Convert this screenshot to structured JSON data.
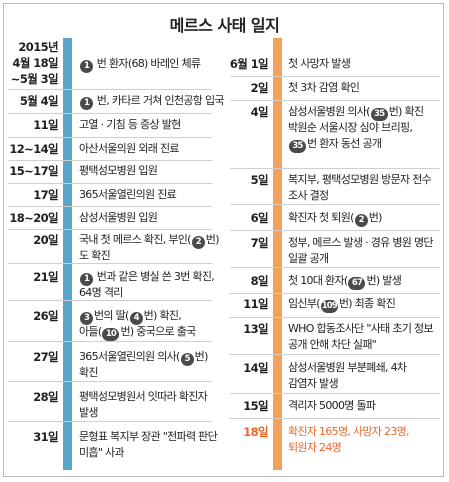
{
  "title": "메르스 사태 일지",
  "colors": {
    "left_bar": "#5aa6c9",
    "right_bar": "#f0a15a",
    "highlight": "#e8682a"
  },
  "left": [
    {
      "date": [
        "2015년",
        "4월 18일",
        "~5월 3일"
      ],
      "line1": [
        {
          "n": "1"
        },
        {
          "t": " 번 환자(68) 바레인 체류"
        }
      ]
    },
    {
      "date": [
        "5월 4일"
      ],
      "line1": [
        {
          "n": "1"
        },
        {
          "t": " 번, 카타르 거쳐 인천공항 입국"
        }
      ]
    },
    {
      "date": [
        "11일"
      ],
      "line1": [
        {
          "t": "고열 · 기침 등 증상 발현"
        }
      ]
    },
    {
      "date": [
        "12~14일"
      ],
      "line1": [
        {
          "t": "아산서울의원 외래 진료"
        }
      ]
    },
    {
      "date": [
        "15~17일"
      ],
      "line1": [
        {
          "t": "평택성모병원 입원"
        }
      ]
    },
    {
      "date": [
        "17일"
      ],
      "line1": [
        {
          "t": "365서울열린의원 진료"
        }
      ]
    },
    {
      "date": [
        "18~20일"
      ],
      "line1": [
        {
          "t": "삼성서울병원 입원"
        }
      ]
    },
    {
      "date": [
        "20일"
      ],
      "line1": [
        {
          "t": "국내 첫 메르스 확진, 부인("
        },
        {
          "n": "2"
        },
        {
          "t": "번)"
        }
      ],
      "line2": [
        {
          "t": "도 확진"
        }
      ]
    },
    {
      "date": [
        "21일"
      ],
      "line1": [
        {
          "n": "1"
        },
        {
          "t": " 번과 같은 병실 쓴 3번 확진,"
        }
      ],
      "line2": [
        {
          "t": "64명 격리"
        }
      ]
    },
    {
      "date": [
        "26일"
      ],
      "line1": [
        {
          "n": "3"
        },
        {
          "t": "번의 딸("
        },
        {
          "n": "4"
        },
        {
          "t": "번) 확진,"
        }
      ],
      "line2": [
        {
          "t": "아들("
        },
        {
          "n": "10"
        },
        {
          "t": "번) 중국으로 출국"
        }
      ]
    },
    {
      "date": [
        "27일"
      ],
      "line1": [
        {
          "t": "365서울열린의원 의사("
        },
        {
          "n": "5"
        },
        {
          "t": "번)"
        }
      ],
      "line2": [
        {
          "t": "확진"
        }
      ]
    },
    {
      "date": [
        "28일"
      ],
      "line1": [
        {
          "t": "평택성모병원서 잇따라 확진자"
        }
      ],
      "line2": [
        {
          "t": "발생"
        }
      ]
    },
    {
      "date": [
        "31일"
      ],
      "line1": [
        {
          "t": "문형표 복지부 장관 \"전파력 판단"
        }
      ],
      "line2": [
        {
          "t": "미흡\" 사과"
        }
      ]
    }
  ],
  "right": [
    {
      "date": [
        "6월 1일"
      ],
      "line1": [
        {
          "t": "첫 사망자 발생"
        }
      ]
    },
    {
      "date": [
        "2일"
      ],
      "line1": [
        {
          "t": "첫 3차 감염 확인"
        }
      ]
    },
    {
      "date": [
        "4일"
      ],
      "line1": [
        {
          "t": "삼성서울병원 의사("
        },
        {
          "n": "35"
        },
        {
          "t": "번) 확진"
        }
      ],
      "line2": [
        {
          "t": "박원순 서울시장 심야 브리핑,"
        }
      ],
      "line3": [
        {
          "n": "35"
        },
        {
          "t": "번 환자 동선 공개"
        }
      ]
    },
    {
      "date": [
        "5일"
      ],
      "line1": [
        {
          "t": "복지부, 평택성모병원 방문자 전수"
        }
      ],
      "line2": [
        {
          "t": "조사 결정"
        }
      ]
    },
    {
      "date": [
        "6일"
      ],
      "line1": [
        {
          "t": "확진자 첫 퇴원("
        },
        {
          "n": "2"
        },
        {
          "t": "번)"
        }
      ]
    },
    {
      "date": [
        "7일"
      ],
      "line1": [
        {
          "t": "정부, 메르스 발생 · 경유 병원 명단"
        }
      ],
      "line2": [
        {
          "t": "일괄 공개"
        }
      ]
    },
    {
      "date": [
        "8일"
      ],
      "line1": [
        {
          "t": "첫 10대 환자("
        },
        {
          "n": "67"
        },
        {
          "t": "번) 발생"
        }
      ]
    },
    {
      "date": [
        "11일"
      ],
      "line1": [
        {
          "t": "임신부("
        },
        {
          "n": "109"
        },
        {
          "t": "번) 최종 확진"
        }
      ]
    },
    {
      "date": [
        "13일"
      ],
      "line1": [
        {
          "t": "WHO 합동조사단 \"사태 초기 정보"
        }
      ],
      "line2": [
        {
          "t": "공개 안해 차단 실패\""
        }
      ]
    },
    {
      "date": [
        "14일"
      ],
      "line1": [
        {
          "t": "삼성서울병원 부분폐쇄, 4차"
        }
      ],
      "line2": [
        {
          "t": "감염자 발생"
        }
      ]
    },
    {
      "date": [
        "15일"
      ],
      "line1": [
        {
          "t": "격리자 5000명 돌파"
        }
      ]
    },
    {
      "date": [
        "18일"
      ],
      "line1": [
        {
          "t": "확진자 165명, 사망자 23명,"
        }
      ],
      "line2": [
        {
          "t": "퇴원자 24명"
        }
      ],
      "highlight": true
    }
  ]
}
